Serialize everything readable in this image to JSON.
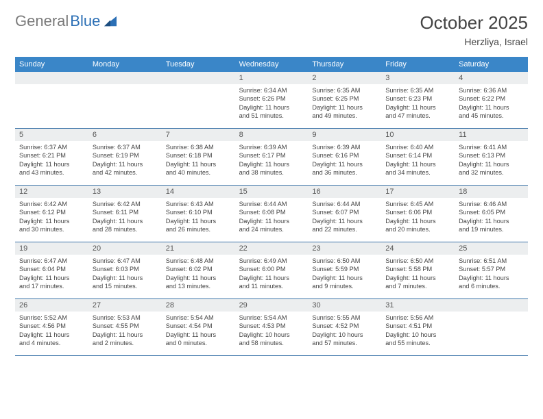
{
  "logo": {
    "text_gray": "General",
    "text_blue": "Blue"
  },
  "title": "October 2025",
  "location": "Herzliya, Israel",
  "colors": {
    "header_bg": "#3a86c8",
    "header_text": "#ffffff",
    "daynum_bg": "#eceeef",
    "week_border": "#3a73a8",
    "logo_gray": "#7a7a7a",
    "logo_blue": "#2b6fb5",
    "text": "#444444"
  },
  "day_names": [
    "Sunday",
    "Monday",
    "Tuesday",
    "Wednesday",
    "Thursday",
    "Friday",
    "Saturday"
  ],
  "weeks": [
    [
      {
        "n": "",
        "lines": []
      },
      {
        "n": "",
        "lines": []
      },
      {
        "n": "",
        "lines": []
      },
      {
        "n": "1",
        "lines": [
          "Sunrise: 6:34 AM",
          "Sunset: 6:26 PM",
          "Daylight: 11 hours",
          "and 51 minutes."
        ]
      },
      {
        "n": "2",
        "lines": [
          "Sunrise: 6:35 AM",
          "Sunset: 6:25 PM",
          "Daylight: 11 hours",
          "and 49 minutes."
        ]
      },
      {
        "n": "3",
        "lines": [
          "Sunrise: 6:35 AM",
          "Sunset: 6:23 PM",
          "Daylight: 11 hours",
          "and 47 minutes."
        ]
      },
      {
        "n": "4",
        "lines": [
          "Sunrise: 6:36 AM",
          "Sunset: 6:22 PM",
          "Daylight: 11 hours",
          "and 45 minutes."
        ]
      }
    ],
    [
      {
        "n": "5",
        "lines": [
          "Sunrise: 6:37 AM",
          "Sunset: 6:21 PM",
          "Daylight: 11 hours",
          "and 43 minutes."
        ]
      },
      {
        "n": "6",
        "lines": [
          "Sunrise: 6:37 AM",
          "Sunset: 6:19 PM",
          "Daylight: 11 hours",
          "and 42 minutes."
        ]
      },
      {
        "n": "7",
        "lines": [
          "Sunrise: 6:38 AM",
          "Sunset: 6:18 PM",
          "Daylight: 11 hours",
          "and 40 minutes."
        ]
      },
      {
        "n": "8",
        "lines": [
          "Sunrise: 6:39 AM",
          "Sunset: 6:17 PM",
          "Daylight: 11 hours",
          "and 38 minutes."
        ]
      },
      {
        "n": "9",
        "lines": [
          "Sunrise: 6:39 AM",
          "Sunset: 6:16 PM",
          "Daylight: 11 hours",
          "and 36 minutes."
        ]
      },
      {
        "n": "10",
        "lines": [
          "Sunrise: 6:40 AM",
          "Sunset: 6:14 PM",
          "Daylight: 11 hours",
          "and 34 minutes."
        ]
      },
      {
        "n": "11",
        "lines": [
          "Sunrise: 6:41 AM",
          "Sunset: 6:13 PM",
          "Daylight: 11 hours",
          "and 32 minutes."
        ]
      }
    ],
    [
      {
        "n": "12",
        "lines": [
          "Sunrise: 6:42 AM",
          "Sunset: 6:12 PM",
          "Daylight: 11 hours",
          "and 30 minutes."
        ]
      },
      {
        "n": "13",
        "lines": [
          "Sunrise: 6:42 AM",
          "Sunset: 6:11 PM",
          "Daylight: 11 hours",
          "and 28 minutes."
        ]
      },
      {
        "n": "14",
        "lines": [
          "Sunrise: 6:43 AM",
          "Sunset: 6:10 PM",
          "Daylight: 11 hours",
          "and 26 minutes."
        ]
      },
      {
        "n": "15",
        "lines": [
          "Sunrise: 6:44 AM",
          "Sunset: 6:08 PM",
          "Daylight: 11 hours",
          "and 24 minutes."
        ]
      },
      {
        "n": "16",
        "lines": [
          "Sunrise: 6:44 AM",
          "Sunset: 6:07 PM",
          "Daylight: 11 hours",
          "and 22 minutes."
        ]
      },
      {
        "n": "17",
        "lines": [
          "Sunrise: 6:45 AM",
          "Sunset: 6:06 PM",
          "Daylight: 11 hours",
          "and 20 minutes."
        ]
      },
      {
        "n": "18",
        "lines": [
          "Sunrise: 6:46 AM",
          "Sunset: 6:05 PM",
          "Daylight: 11 hours",
          "and 19 minutes."
        ]
      }
    ],
    [
      {
        "n": "19",
        "lines": [
          "Sunrise: 6:47 AM",
          "Sunset: 6:04 PM",
          "Daylight: 11 hours",
          "and 17 minutes."
        ]
      },
      {
        "n": "20",
        "lines": [
          "Sunrise: 6:47 AM",
          "Sunset: 6:03 PM",
          "Daylight: 11 hours",
          "and 15 minutes."
        ]
      },
      {
        "n": "21",
        "lines": [
          "Sunrise: 6:48 AM",
          "Sunset: 6:02 PM",
          "Daylight: 11 hours",
          "and 13 minutes."
        ]
      },
      {
        "n": "22",
        "lines": [
          "Sunrise: 6:49 AM",
          "Sunset: 6:00 PM",
          "Daylight: 11 hours",
          "and 11 minutes."
        ]
      },
      {
        "n": "23",
        "lines": [
          "Sunrise: 6:50 AM",
          "Sunset: 5:59 PM",
          "Daylight: 11 hours",
          "and 9 minutes."
        ]
      },
      {
        "n": "24",
        "lines": [
          "Sunrise: 6:50 AM",
          "Sunset: 5:58 PM",
          "Daylight: 11 hours",
          "and 7 minutes."
        ]
      },
      {
        "n": "25",
        "lines": [
          "Sunrise: 6:51 AM",
          "Sunset: 5:57 PM",
          "Daylight: 11 hours",
          "and 6 minutes."
        ]
      }
    ],
    [
      {
        "n": "26",
        "lines": [
          "Sunrise: 5:52 AM",
          "Sunset: 4:56 PM",
          "Daylight: 11 hours",
          "and 4 minutes."
        ]
      },
      {
        "n": "27",
        "lines": [
          "Sunrise: 5:53 AM",
          "Sunset: 4:55 PM",
          "Daylight: 11 hours",
          "and 2 minutes."
        ]
      },
      {
        "n": "28",
        "lines": [
          "Sunrise: 5:54 AM",
          "Sunset: 4:54 PM",
          "Daylight: 11 hours",
          "and 0 minutes."
        ]
      },
      {
        "n": "29",
        "lines": [
          "Sunrise: 5:54 AM",
          "Sunset: 4:53 PM",
          "Daylight: 10 hours",
          "and 58 minutes."
        ]
      },
      {
        "n": "30",
        "lines": [
          "Sunrise: 5:55 AM",
          "Sunset: 4:52 PM",
          "Daylight: 10 hours",
          "and 57 minutes."
        ]
      },
      {
        "n": "31",
        "lines": [
          "Sunrise: 5:56 AM",
          "Sunset: 4:51 PM",
          "Daylight: 10 hours",
          "and 55 minutes."
        ]
      },
      {
        "n": "",
        "lines": []
      }
    ]
  ]
}
